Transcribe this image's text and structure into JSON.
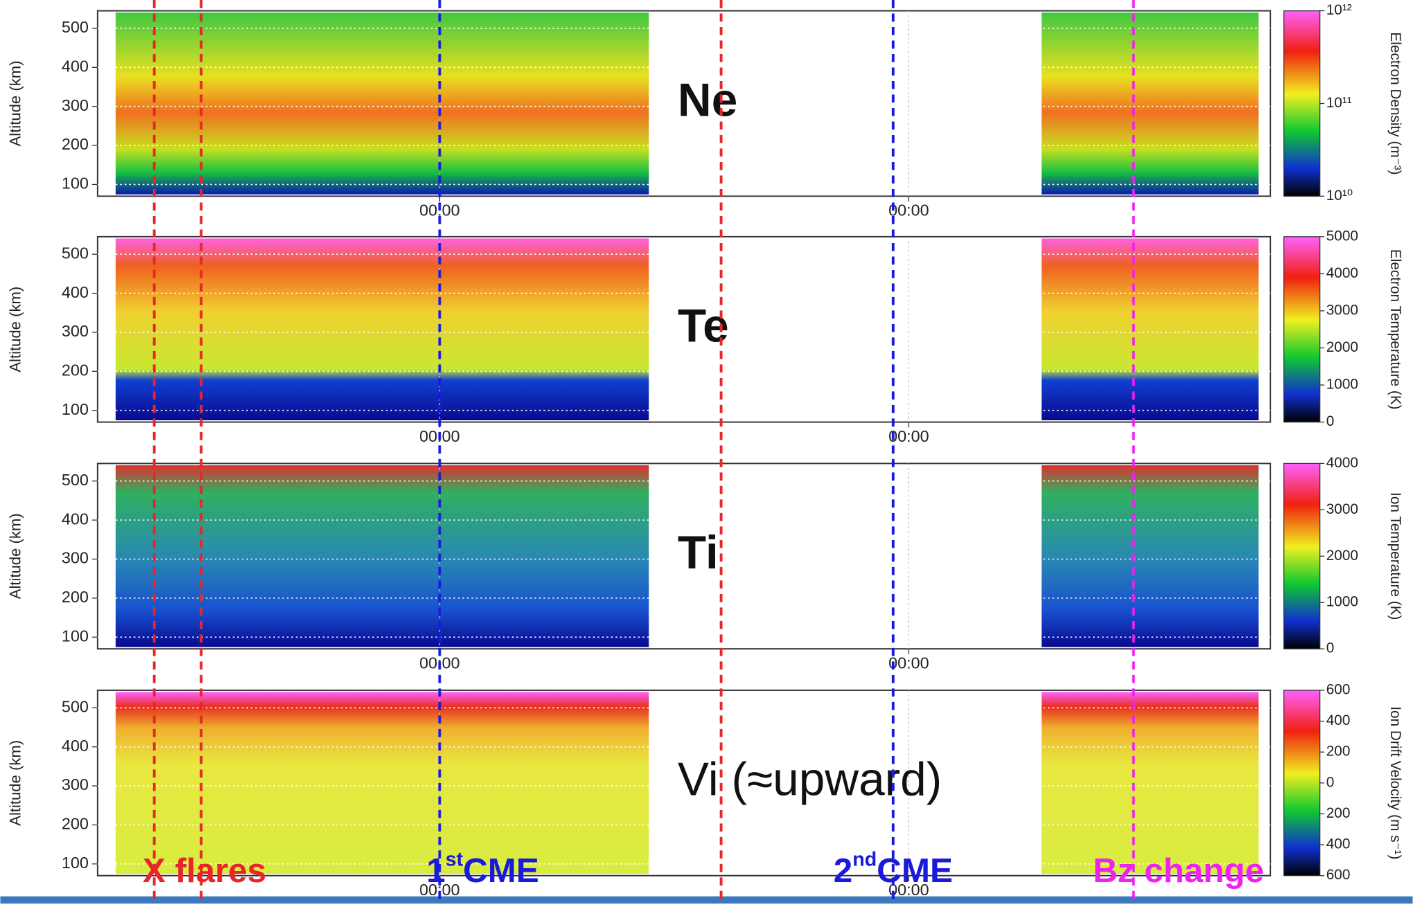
{
  "chart_data": [
    {
      "type": "heatmap",
      "label": "Ne",
      "ylabel": "Altitude (km)",
      "ylim": [
        70,
        545
      ],
      "yticks": [
        100,
        200,
        300,
        400,
        500
      ],
      "xlim": [
        -17.5,
        42.5
      ],
      "xticks": [
        {
          "value": 0,
          "label": "00:00"
        },
        {
          "value": 24,
          "label": "00:00"
        }
      ],
      "colorbar": {
        "label": "Electron Density (m⁻³)",
        "log": true,
        "lim": [
          10000000000,
          1000000000000
        ],
        "ticks": [
          {
            "value": 10000000000,
            "label": "10¹⁰"
          },
          {
            "value": 100000000000,
            "label": "10¹¹"
          },
          {
            "value": 1000000000000,
            "label": "10¹²"
          }
        ]
      }
    },
    {
      "type": "heatmap",
      "label": "Te",
      "ylabel": "Altitude (km)",
      "ylim": [
        70,
        545
      ],
      "yticks": [
        100,
        200,
        300,
        400,
        500
      ],
      "xlim": [
        -17.5,
        42.5
      ],
      "xticks": [
        {
          "value": 0,
          "label": "00:00"
        },
        {
          "value": 24,
          "label": "00:00"
        }
      ],
      "colorbar": {
        "label": "Electron Temperature (K)",
        "log": false,
        "lim": [
          0,
          5000
        ],
        "ticks": [
          0,
          1000,
          2000,
          3000,
          4000,
          5000
        ]
      }
    },
    {
      "type": "heatmap",
      "label": "Ti",
      "ylabel": "Altitude (km)",
      "ylim": [
        70,
        545
      ],
      "yticks": [
        100,
        200,
        300,
        400,
        500
      ],
      "xlim": [
        -17.5,
        42.5
      ],
      "xticks": [
        {
          "value": 0,
          "label": "00:00"
        },
        {
          "value": 24,
          "label": "00:00"
        }
      ],
      "colorbar": {
        "label": "Ion Temperature (K)",
        "log": false,
        "lim": [
          0,
          4000
        ],
        "ticks": [
          0,
          1000,
          2000,
          3000,
          4000
        ]
      }
    },
    {
      "type": "heatmap",
      "label": "Vi (≈upward)",
      "ylabel": "Altitude (km)",
      "ylim": [
        70,
        545
      ],
      "yticks": [
        100,
        200,
        300,
        400,
        500
      ],
      "xlim": [
        -17.5,
        42.5
      ],
      "xticks": [
        {
          "value": 0,
          "label": "00:00"
        },
        {
          "value": 24,
          "label": "00:00"
        }
      ],
      "colorbar": {
        "label": "Ion Drift Velocity (m s⁻¹)",
        "log": false,
        "lim": [
          -600,
          600
        ],
        "ticks": [
          {
            "value": -600,
            "label": "600"
          },
          {
            "value": -400,
            "label": "400"
          },
          {
            "value": -200,
            "label": "200"
          },
          0,
          200,
          400,
          600
        ]
      }
    }
  ],
  "markers": [
    {
      "x": -14.6,
      "color": "#e8262a"
    },
    {
      "x": -12.2,
      "color": "#e8262a"
    },
    {
      "x": 14.4,
      "color": "#e8262a"
    },
    {
      "x": 0,
      "color": "#1a1adc"
    },
    {
      "x": 23.2,
      "color": "#1a1adc"
    },
    {
      "x": 35.5,
      "color": "#ee22ee"
    }
  ],
  "annotations": [
    {
      "text": "X flares",
      "color": "#e8262a"
    },
    {
      "base": "1",
      "sup": "st",
      "text": "CME",
      "color": "#1a1adc"
    },
    {
      "base": "2",
      "sup": "nd",
      "text": "CME",
      "color": "#1a1adc"
    },
    {
      "text": "Bz change",
      "color": "#ee22ee"
    }
  ]
}
